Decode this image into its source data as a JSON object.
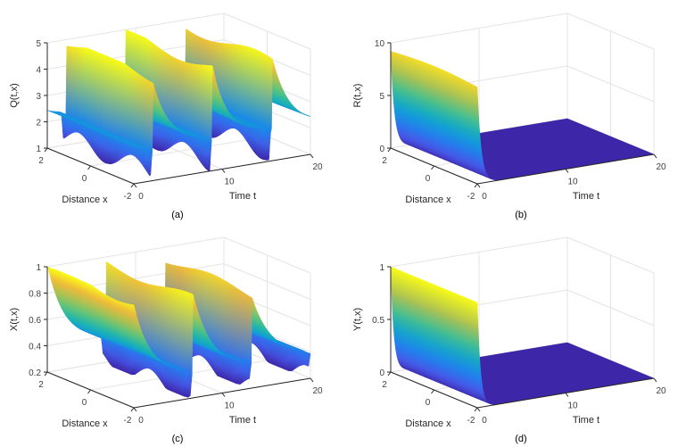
{
  "figure": {
    "background": "#ffffff",
    "axis_color": "#262626",
    "tick_color": "#404040",
    "grid_color": "#e4e4e4",
    "colormap": "parula",
    "colormap_stops": [
      [
        62,
        38,
        168
      ],
      [
        70,
        88,
        232
      ],
      [
        36,
        124,
        237
      ],
      [
        18,
        156,
        217
      ],
      [
        31,
        181,
        175
      ],
      [
        92,
        195,
        125
      ],
      [
        170,
        194,
        83
      ],
      [
        239,
        186,
        57
      ],
      [
        249,
        251,
        21
      ]
    ]
  },
  "chart_data": [
    {
      "type": "surface",
      "id": "a",
      "caption": "(a)",
      "zlabel": "Q(t,x)",
      "xlabel": "Distance x",
      "tlabel": "Time t",
      "xlim": [
        -2,
        2
      ],
      "tlim": [
        0,
        20
      ],
      "zlim": [
        1,
        5
      ],
      "xticks": [
        2,
        0,
        -2
      ],
      "tticks": [
        0,
        10,
        20
      ],
      "zticks": [
        1,
        2,
        3,
        4,
        5
      ],
      "surface": {
        "kind": "periodic",
        "base": 2.2,
        "amp": 2.7,
        "decay": 0.55,
        "period": 6.7,
        "phase": 2.2,
        "ampDecay": 0,
        "xwave": 0.08,
        "dip": 1.0,
        "dipPos": 0.35,
        "dipWidth": 0.18,
        "dipXwave": 0.4
      },
      "description": "Periodic pulse train: Q(t,x) jumps to ~5 at t≈2.2, 8.9, 15.6 then decays toward ~2.2 within each ~6.7 period; narrow grooves with spikes down toward 1 appear just before each crest; mild variation along x."
    },
    {
      "type": "surface",
      "id": "b",
      "caption": "(b)",
      "zlabel": "R(t,x)",
      "xlabel": "Distance x",
      "tlabel": "Time t",
      "xlim": [
        -2,
        2
      ],
      "tlim": [
        0,
        20
      ],
      "zlim": [
        0,
        10
      ],
      "xticks": [
        2,
        0,
        -2
      ],
      "tticks": [
        0,
        10,
        20
      ],
      "zticks": [
        0,
        5,
        10
      ],
      "surface": {
        "kind": "expdecay",
        "a0": 9.2,
        "k": 2.3,
        "xvar": 0.03
      },
      "description": "R(t,x) starts near 9 at t=0 for all x, decays exponentially to 0 by t≈2, then remains a flat dark-blue plane at 0 up to t=20."
    },
    {
      "type": "surface",
      "id": "c",
      "caption": "(c)",
      "zlabel": "X(t,x)",
      "xlabel": "Distance x",
      "tlabel": "Time t",
      "xlim": [
        -2,
        2
      ],
      "tlim": [
        0,
        20
      ],
      "zlim": [
        0.2,
        1
      ],
      "xticks": [
        2,
        0,
        -2
      ],
      "tticks": [
        0,
        10,
        20
      ],
      "zticks": [
        0.2,
        0.4,
        0.6,
        0.8,
        1
      ],
      "surface": {
        "kind": "periodic",
        "base": 0.38,
        "amp": 0.62,
        "decay": 0.45,
        "period": 6.7,
        "phase": 0,
        "ampDecay": 0.012,
        "xwave": 0.06,
        "dip": 0.2,
        "dipPos": 0.35,
        "dipWidth": 0.18,
        "dipXwave": 0.4
      },
      "description": "X(t,x) starts at ~1 at t=0, decays toward ~0.4, with recurring crests near t≈6.7 and 13.4 of slowly decreasing height (~0.95, ~0.9); narrow grooves toward 0.2 precede each crest."
    },
    {
      "type": "surface",
      "id": "d",
      "caption": "(d)",
      "zlabel": "Y(t,x)",
      "xlabel": "Distance x",
      "tlabel": "Time t",
      "xlim": [
        -2,
        2
      ],
      "tlim": [
        0,
        20
      ],
      "zlim": [
        0,
        1
      ],
      "xticks": [
        2,
        0,
        -2
      ],
      "tticks": [
        0,
        10,
        20
      ],
      "zticks": [
        0,
        0.5,
        1
      ],
      "surface": {
        "kind": "expdecay",
        "a0": 1.0,
        "k": 2.8,
        "xvar": 0
      },
      "description": "Y(t,x) starts at 1 at t=0 for all x, decays exponentially to 0 by t≈1.5, then remains a flat dark-blue plane at 0 up to t=20."
    }
  ]
}
